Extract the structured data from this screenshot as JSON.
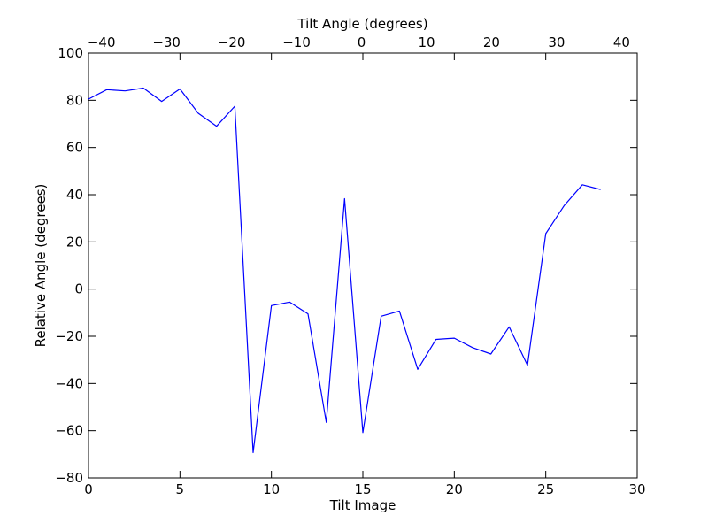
{
  "chart_data": {
    "type": "line",
    "xlabel": "Tilt Image",
    "ylabel": "Relative Angle (degrees)",
    "top_xlabel": "Tilt Angle (degrees)",
    "xlim": [
      0,
      30
    ],
    "ylim": [
      -80,
      100
    ],
    "top_xlim": [
      -42,
      42.4
    ],
    "x_ticks": [
      "0",
      "5",
      "10",
      "15",
      "20",
      "25",
      "30"
    ],
    "y_ticks": [
      "−80",
      "−60",
      "−40",
      "−20",
      "0",
      "20",
      "40",
      "60",
      "80",
      "100"
    ],
    "top_x_ticks": [
      "−40",
      "−30",
      "−20",
      "−10",
      "0",
      "10",
      "20",
      "30",
      "40"
    ],
    "grid": false,
    "line_color": "#0000ff",
    "series": [
      {
        "x": [
          0,
          1,
          2,
          3,
          4,
          5,
          6,
          7,
          8,
          9,
          10,
          11,
          12,
          13,
          14,
          15,
          16,
          17,
          18,
          19,
          20,
          21,
          22,
          23,
          24,
          25,
          26,
          27,
          28
        ],
        "values": [
          80.5,
          84.5,
          84.0,
          85.2,
          79.5,
          84.8,
          74.5,
          69.0,
          77.5,
          -69.3,
          -7.0,
          -5.5,
          -10.5,
          -56.5,
          38.3,
          -60.8,
          -11.5,
          -9.3,
          -34.0,
          -21.3,
          -20.8,
          -24.8,
          -27.5,
          -16.0,
          -32.3,
          23.5,
          35.3,
          44.2,
          42.2
        ]
      }
    ]
  }
}
